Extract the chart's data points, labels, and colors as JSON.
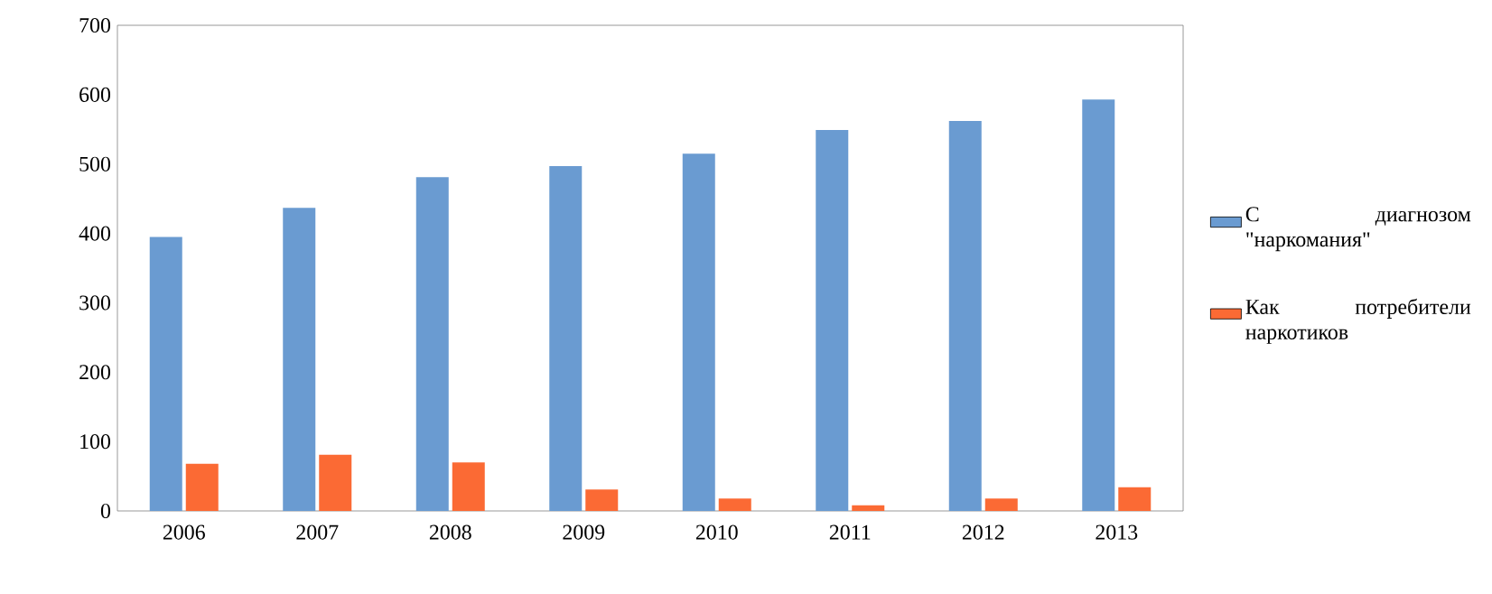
{
  "chart_data": {
    "type": "bar",
    "categories": [
      "2006",
      "2007",
      "2008",
      "2009",
      "2010",
      "2011",
      "2012",
      "2013"
    ],
    "series": [
      {
        "name": "С диагнозом \"наркомания\"",
        "color": "#6a9bd1",
        "values": [
          395,
          437,
          481,
          497,
          515,
          549,
          562,
          593
        ]
      },
      {
        "name": "Как потребители наркотиков",
        "color": "#fb6a34",
        "values": [
          68,
          81,
          70,
          31,
          18,
          8,
          18,
          34
        ]
      }
    ],
    "ylim": [
      0,
      700
    ],
    "yticks": [
      0,
      100,
      200,
      300,
      400,
      500,
      600,
      700
    ],
    "legend": "right",
    "grid": false
  }
}
